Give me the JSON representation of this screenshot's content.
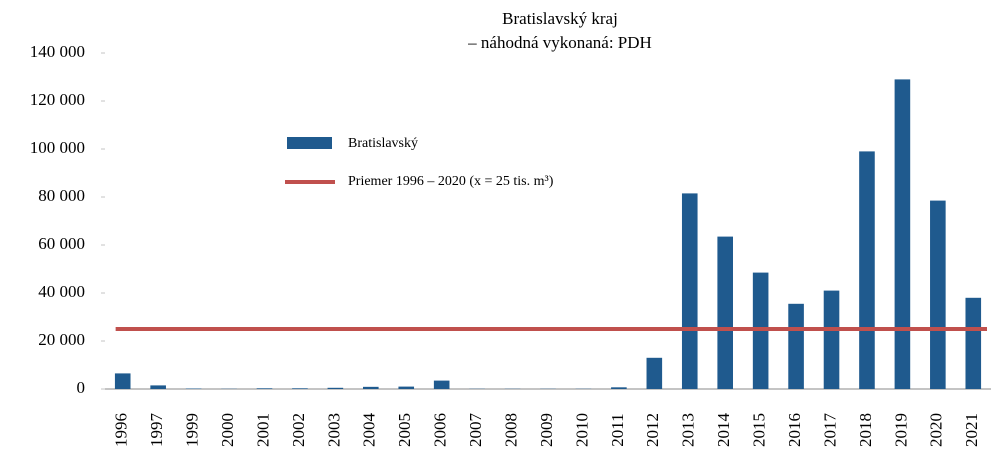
{
  "chart_data": {
    "type": "bar",
    "title": "Bratislavský kraj",
    "subtitle": "– náhodná vykonaná: PDH",
    "categories": [
      "1996",
      "1997",
      "1999",
      "2000",
      "2001",
      "2002",
      "2003",
      "2004",
      "2005",
      "2006",
      "2007",
      "2008",
      "2009",
      "2010",
      "2011",
      "2012",
      "2013",
      "2014",
      "2015",
      "2016",
      "2017",
      "2018",
      "2019",
      "2020",
      "2021"
    ],
    "series": [
      {
        "name": "Bratislavský",
        "color": "#1f5a8e",
        "values": [
          6500,
          1500,
          200,
          100,
          300,
          300,
          500,
          900,
          1000,
          3500,
          100,
          100,
          100,
          100,
          700,
          13000,
          81500,
          63500,
          48500,
          35500,
          41000,
          99000,
          129000,
          78500,
          38000
        ]
      },
      {
        "name": "Priemer 1996 – 2020 (x = 25 tis. m³)",
        "color": "#c0504d",
        "type": "line",
        "value": 25000
      }
    ],
    "ylim": [
      0,
      140000
    ],
    "yticks": [
      0,
      {
        "value": 20000,
        "label": "20 000"
      },
      {
        "value": 40000,
        "label": "40 000"
      },
      {
        "value": 60000,
        "label": "60 000"
      },
      {
        "value": 80000,
        "label": "80 000"
      },
      {
        "value": 100000,
        "label": "100 000"
      },
      {
        "value": 120000,
        "label": "120 000"
      },
      {
        "value": 140000,
        "label": "140 000"
      }
    ],
    "grid": false
  }
}
